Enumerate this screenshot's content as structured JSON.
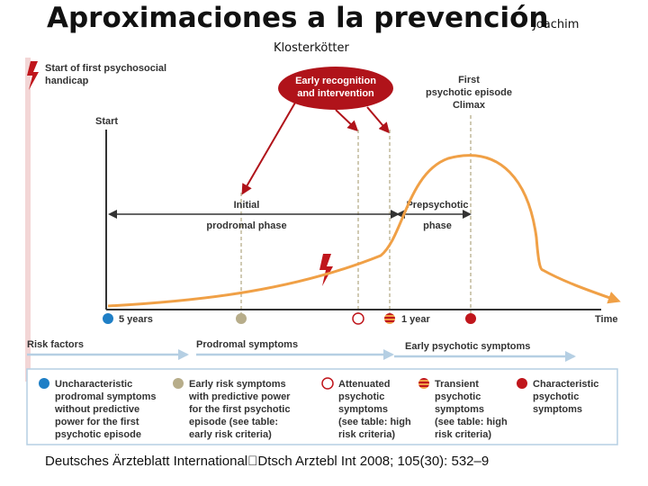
{
  "title": {
    "main": "Aproximaciones a la prevención",
    "author_line1": "Joachim",
    "author_line2": "Klosterkötter"
  },
  "diagram": {
    "start_handicap": [
      "Start of first psychosocial",
      "handicap"
    ],
    "early_recognition": [
      "Early recognition",
      "and intervention"
    ],
    "first_episode": [
      "First",
      "psychotic episode",
      "Climax"
    ],
    "start": "Start",
    "initial_phase": [
      "Initial",
      "prodromal phase"
    ],
    "prepsychotic_phase": [
      "Prepsychotic",
      "phase"
    ],
    "five_years": "5 years",
    "one_year": "1 year",
    "time": "Time",
    "risk_factors": "Risk factors",
    "prodromal_symptoms": "Prodromal symptoms",
    "early_psychotic_symptoms": "Early psychotic symptoms",
    "colors": {
      "blue": "#1f7fc6",
      "tan": "#b7ad8a",
      "red": "#c0161c",
      "orange": "#f0a046",
      "gray_axis": "#333333"
    }
  },
  "legend": [
    {
      "id": "uncharacteristic",
      "lines": [
        "Uncharacteristic",
        "prodromal symptoms",
        "without predictive",
        "power for the first",
        "psychotic episode"
      ]
    },
    {
      "id": "early-risk",
      "lines": [
        "Early risk symptoms",
        "with predictive power",
        "for the first psychotic",
        "episode (see table:",
        "early risk criteria)"
      ]
    },
    {
      "id": "attenuated",
      "lines": [
        "Attenuated",
        "psychotic",
        "symptoms",
        "(see table: high",
        "risk criteria)"
      ]
    },
    {
      "id": "transient",
      "lines": [
        "Transient",
        "psychotic",
        "symptoms",
        "(see table: high",
        "risk criteria)"
      ]
    },
    {
      "id": "characteristic",
      "lines": [
        "Characteristic",
        "psychotic",
        "symptoms"
      ]
    }
  ],
  "footer": "Deutsches Ärzteblatt International\u0000Dtsch Arztebl Int 2008; 105(30): 532–9"
}
